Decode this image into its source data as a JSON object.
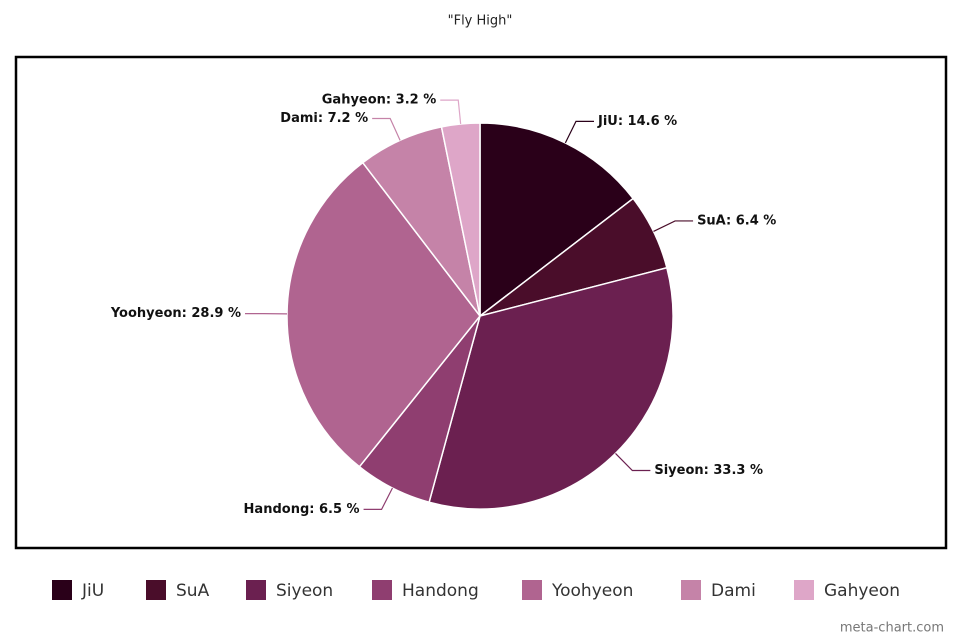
{
  "chart_data": {
    "type": "pie",
    "title": "\"Fly High\"",
    "categories": [
      "JiU",
      "SuA",
      "Siyeon",
      "Handong",
      "Yoohyeon",
      "Dami",
      "Gahyeon"
    ],
    "values": [
      14.6,
      6.4,
      33.3,
      6.5,
      28.9,
      7.2,
      3.2
    ],
    "value_labels": [
      "JiU: 14.6 %",
      "SuA: 6.4 %",
      "Siyeon: 33.3 %",
      "Handong: 6.5 %",
      "Yoohyeon: 28.9 %",
      "Dami: 7.2 %",
      "Gahyeon: 3.2 %"
    ],
    "colors": [
      "#2a0019",
      "#4a0d2a",
      "#6b2050",
      "#8f3e70",
      "#b06490",
      "#c583a8",
      "#dea6c8"
    ],
    "footer": "meta-chart.com"
  }
}
